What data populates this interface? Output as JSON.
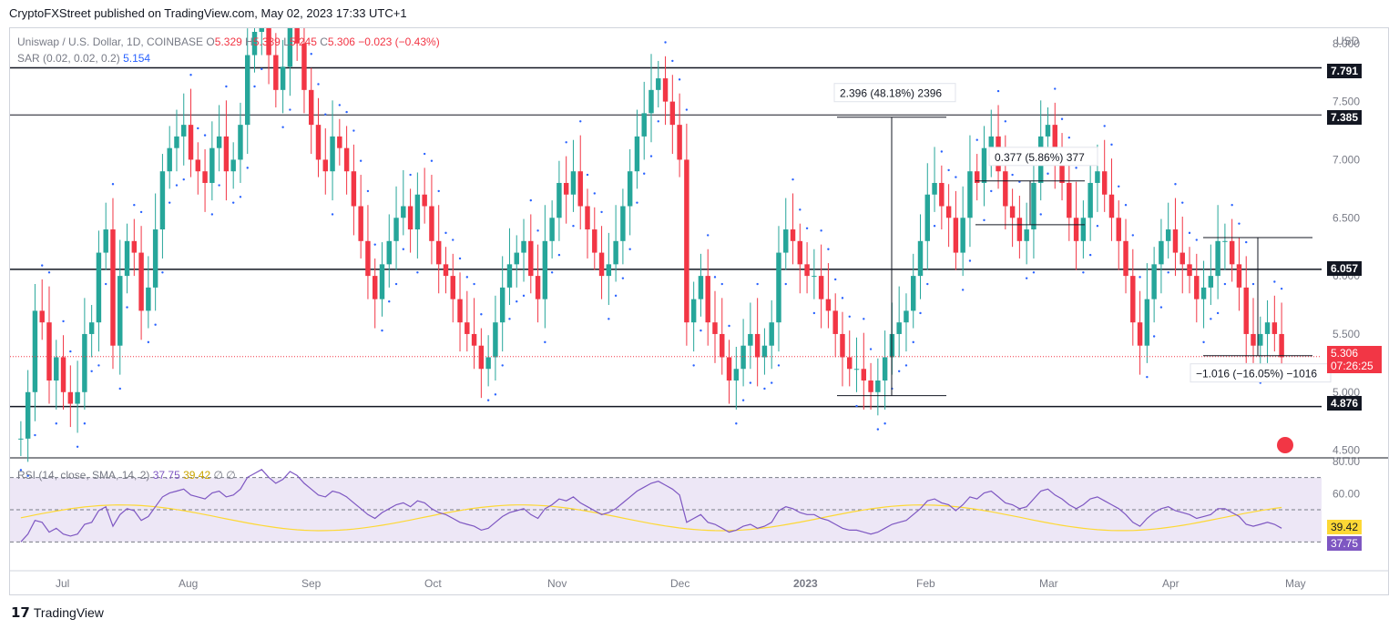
{
  "header": {
    "published_text": "CryptoFXStreet published on TradingView.com, May 02, 2023 17:33 UTC+1"
  },
  "legend": {
    "symbol": "Uniswap / U.S. Dollar, 1D, COINBASE",
    "open_label": "O",
    "open": "5.329",
    "high_label": "H",
    "high": "5.339",
    "low_label": "L",
    "low": "5.245",
    "close_label": "C",
    "close": "5.306",
    "change": "−0.023 (−0.43%)",
    "sar_label": "SAR (0.02, 0.02, 0.2)",
    "sar_value": "5.154",
    "rsi_label": "RSI (14, close, SMA, 14, 2)",
    "rsi_value": "37.75",
    "rsi_sma_value": "39.42",
    "rsi_extra": "∅ ∅"
  },
  "currency": "USD",
  "price_tags": {
    "level_top": "7.791",
    "level_mid_high": "7.385",
    "level_mid": "6.057",
    "level_low": "4.876",
    "last_price": "5.306",
    "countdown": "07:26:25",
    "rsi_sma": "39.42",
    "rsi": "37.75"
  },
  "annotations": {
    "measure_up": "2.396 (48.18%) 2396",
    "measure_small": "0.377 (5.86%) 377",
    "measure_down": "−1.016 (−16.05%) −1016"
  },
  "footer": {
    "brand": "TradingView"
  },
  "colors": {
    "up": "#26a69a",
    "down": "#f23645",
    "sar": "#2962ff",
    "rsi": "#7e57c2",
    "rsi_sma": "#fdd835",
    "rsi_band": "#ede7f6"
  },
  "chart_data": {
    "type": "candlestick",
    "title": "Uniswap / U.S. Dollar, 1D, COINBASE",
    "yaxis_ticks": [
      "8.000",
      "7.500",
      "7.000",
      "6.500",
      "6.000",
      "5.500",
      "5.000",
      "4.500"
    ],
    "xaxis_ticks": [
      "Jul",
      "Aug",
      "Sep",
      "Oct",
      "Nov",
      "Dec",
      "2023",
      "Feb",
      "Mar",
      "Apr",
      "May"
    ],
    "ylim": [
      4.45,
      8.1
    ],
    "horizontal_levels": [
      7.791,
      7.385,
      6.057,
      4.876
    ],
    "last_price": 5.306,
    "measures": [
      {
        "from": 4.97,
        "to": 7.366,
        "label": "2.396 (48.18%) 2396"
      },
      {
        "from": 6.44,
        "to": 6.817,
        "label": "0.377 (5.86%) 377"
      },
      {
        "from": 6.33,
        "to": 5.314,
        "label": "−1.016 (−16.05%) −1016"
      }
    ],
    "rsi": {
      "ylim": [
        20,
        80
      ],
      "ticks": [
        "80.00",
        "60.00"
      ],
      "upper_band": 70,
      "lower_band": 30,
      "last": 37.75,
      "sma_last": 39.42
    },
    "series_close": [
      4.6,
      5.0,
      5.7,
      5.6,
      5.1,
      5.3,
      5.0,
      4.9,
      5.0,
      5.5,
      5.6,
      6.2,
      6.4,
      5.4,
      6.0,
      6.3,
      6.2,
      5.7,
      5.9,
      6.4,
      6.9,
      7.1,
      7.2,
      7.3,
      7.0,
      6.9,
      6.8,
      7.1,
      7.2,
      6.9,
      7.0,
      7.3,
      7.9,
      8.1,
      8.3,
      7.9,
      7.6,
      7.8,
      8.2,
      8.0,
      7.6,
      7.3,
      7.0,
      6.9,
      7.2,
      7.1,
      6.9,
      6.6,
      6.3,
      6.0,
      5.8,
      6.1,
      6.3,
      6.5,
      6.6,
      6.4,
      6.7,
      6.6,
      6.3,
      6.1,
      6.0,
      5.8,
      5.6,
      5.5,
      5.4,
      5.2,
      5.3,
      5.6,
      5.9,
      6.1,
      6.2,
      6.3,
      6.0,
      5.8,
      6.3,
      6.5,
      6.8,
      6.7,
      6.9,
      6.6,
      6.4,
      6.2,
      6.0,
      6.1,
      6.3,
      6.6,
      6.9,
      7.2,
      7.4,
      7.6,
      7.7,
      7.5,
      7.3,
      7.0,
      5.6,
      5.8,
      6.0,
      5.6,
      5.5,
      5.3,
      5.1,
      5.2,
      5.4,
      5.5,
      5.3,
      5.4,
      5.6,
      6.2,
      6.4,
      6.3,
      6.1,
      6.0,
      6.0,
      5.8,
      5.7,
      5.5,
      5.3,
      5.2,
      5.2,
      5.1,
      5.0,
      5.1,
      5.3,
      5.5,
      5.6,
      5.7,
      6.0,
      6.3,
      6.7,
      6.8,
      6.6,
      6.5,
      6.2,
      6.5,
      6.9,
      6.8,
      7.1,
      7.2,
      6.9,
      6.6,
      6.5,
      6.3,
      6.4,
      6.8,
      7.2,
      7.3,
      7.0,
      6.8,
      6.5,
      6.3,
      6.5,
      6.8,
      6.9,
      6.7,
      6.5,
      6.3,
      6.0,
      5.6,
      5.4,
      5.8,
      6.1,
      6.3,
      6.4,
      6.2,
      6.1,
      6.0,
      5.8,
      5.9,
      6.0,
      6.3,
      6.3,
      6.1,
      5.9,
      5.5,
      5.4,
      5.5,
      5.6,
      5.5,
      5.3
    ]
  }
}
